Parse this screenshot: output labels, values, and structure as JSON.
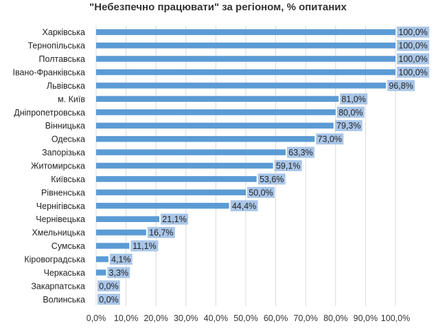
{
  "chart_data": {
    "type": "bar",
    "orientation": "horizontal",
    "title": "\"Небезпечно працювати\" за регіоном, % опитаних",
    "categories": [
      "Харківська",
      "Тернопільська",
      "Полтавська",
      "Івано-Франківська",
      "Львівська",
      "м. Київ",
      "Дніпропетровська",
      "Вінницька",
      "Одеська",
      "Запорізька",
      "Житомирська",
      "Київська",
      "Рівненська",
      "Чернігівська",
      "Чернівецька",
      "Хмельницька",
      "Сумська",
      "Кіровоградська",
      "Черкаська",
      "Закарпатська",
      "Волинська"
    ],
    "values": [
      100.0,
      100.0,
      100.0,
      100.0,
      96.8,
      81.0,
      80.0,
      79.3,
      73.0,
      63.3,
      59.1,
      53.6,
      50.0,
      44.4,
      21.1,
      16.7,
      11.1,
      4.1,
      3.3,
      0.0,
      0.0
    ],
    "data_labels": [
      "100,0%",
      "100,0%",
      "100,0%",
      "100,0%",
      "96,8%",
      "81,0%",
      "80,0%",
      "79,3%",
      "73,0%",
      "63,3%",
      "59,1%",
      "53,6%",
      "50,0%",
      "44,4%",
      "21,1%",
      "16,7%",
      "11,1%",
      "4,1%",
      "3,3%",
      "0,0%",
      "0,0%"
    ],
    "x_ticks": [
      "0,0%",
      "10,0%",
      "20,0%",
      "30,0%",
      "40,0%",
      "50,0%",
      "60,0%",
      "70,0%",
      "80,0%",
      "90,0%",
      "100,0%"
    ],
    "xlim": [
      0,
      100
    ],
    "xlabel": "",
    "ylabel": "",
    "grid": true,
    "colors": {
      "bar": "#5b9bd5",
      "label_bg": "#a9c6e8",
      "grid": "#d9d9d9"
    }
  }
}
